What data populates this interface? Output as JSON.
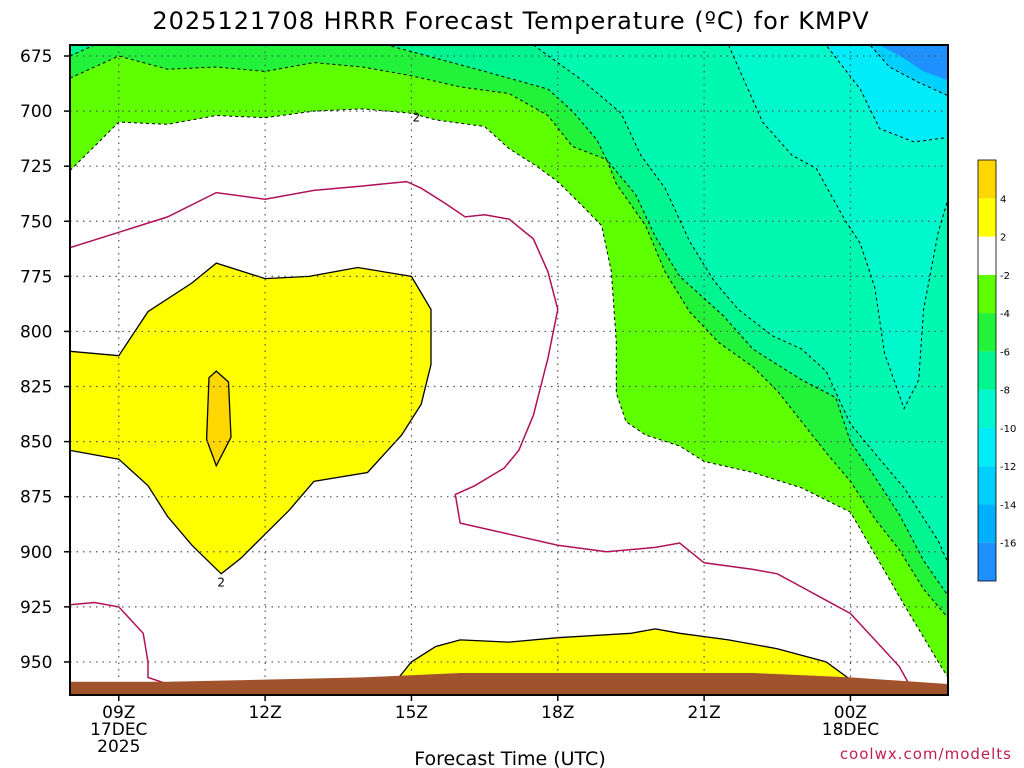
{
  "chart_data": {
    "type": "heatmap",
    "title": "2025121708 HRRR Forecast Temperature (ºC) for KMPV",
    "xlabel": "Forecast Time (UTC)",
    "ylabel": "",
    "y_axis": {
      "unit": "hPa",
      "range": [
        965,
        670
      ],
      "ticks": [
        675,
        700,
        725,
        750,
        775,
        800,
        825,
        850,
        875,
        900,
        925,
        950
      ]
    },
    "x_axis": {
      "unit": "hour_utc",
      "range": [
        8,
        26
      ],
      "ticks": [
        {
          "h": 9,
          "lines": [
            "09Z",
            "17DEC",
            "2025"
          ]
        },
        {
          "h": 12,
          "lines": [
            "12Z"
          ]
        },
        {
          "h": 15,
          "lines": [
            "15Z"
          ]
        },
        {
          "h": 18,
          "lines": [
            "18Z"
          ]
        },
        {
          "h": 21,
          "lines": [
            "21Z"
          ]
        },
        {
          "h": 24,
          "lines": [
            "00Z",
            "18DEC"
          ]
        }
      ]
    },
    "colorbar": {
      "levels": [
        {
          "label": "",
          "color": "#1e90ff"
        },
        {
          "label": "-16",
          "color": "#00b0ff"
        },
        {
          "label": "-14",
          "color": "#00d0ff"
        },
        {
          "label": "-12",
          "color": "#00ecf8"
        },
        {
          "label": "-10",
          "color": "#00f8cc"
        },
        {
          "label": "-8",
          "color": "#00f590"
        },
        {
          "label": "-6",
          "color": "#22f23a"
        },
        {
          "label": "-4",
          "color": "#5eff00"
        },
        {
          "label": "-2",
          "color": "#ffffff"
        },
        {
          "label": "2",
          "color": "#ffff00"
        },
        {
          "label": "4",
          "color": "#ffd700"
        }
      ]
    },
    "regions": [
      {
        "name": "below-minus-10",
        "color": "#00f8cc",
        "points": [
          [
            8,
            670
          ],
          [
            26,
            670
          ],
          [
            26,
            740
          ],
          [
            25.8,
            755
          ],
          [
            25.5,
            790
          ],
          [
            25.4,
            822
          ],
          [
            25.1,
            835
          ],
          [
            24.7,
            810
          ],
          [
            24.5,
            780
          ],
          [
            24.2,
            760
          ],
          [
            23.9,
            750
          ],
          [
            23.3,
            726
          ],
          [
            22.8,
            720
          ],
          [
            22.2,
            705
          ],
          [
            21.8,
            685
          ],
          [
            21.5,
            670
          ]
        ]
      },
      {
        "name": "below-minus-12",
        "color": "#00ecf8",
        "points": [
          [
            22.8,
            670
          ],
          [
            26,
            670
          ],
          [
            26,
            712
          ],
          [
            25.3,
            714
          ],
          [
            24.6,
            708
          ],
          [
            24.2,
            690
          ],
          [
            23.5,
            670
          ]
        ]
      },
      {
        "name": "below-minus-14",
        "color": "#00d0ff",
        "points": [
          [
            23.8,
            670
          ],
          [
            26,
            670
          ],
          [
            26,
            693
          ],
          [
            25.4,
            687
          ],
          [
            24.8,
            680
          ],
          [
            24.4,
            670
          ]
        ]
      },
      {
        "name": "below-minus-16",
        "color": "#1e90ff",
        "points": [
          [
            24.6,
            670
          ],
          [
            26,
            670
          ],
          [
            26,
            686
          ],
          [
            25.5,
            682
          ],
          [
            25.1,
            676
          ]
        ]
      }
    ],
    "warm_layers": [
      {
        "name": "above-2-upper",
        "color": "#ffff00",
        "points": [
          [
            8,
            809
          ],
          [
            9,
            811
          ],
          [
            9.6,
            791
          ],
          [
            10.5,
            778
          ],
          [
            11,
            769
          ],
          [
            12,
            776
          ],
          [
            12.9,
            775
          ],
          [
            13.9,
            771
          ],
          [
            15,
            775
          ],
          [
            15.4,
            790
          ],
          [
            15.4,
            815
          ],
          [
            15.2,
            833
          ],
          [
            14.8,
            847
          ],
          [
            14.1,
            864
          ],
          [
            13,
            868
          ],
          [
            12.5,
            881
          ],
          [
            12,
            892
          ],
          [
            11.5,
            903
          ],
          [
            11.1,
            910
          ],
          [
            10.5,
            897
          ],
          [
            10,
            884
          ],
          [
            9.6,
            870
          ],
          [
            9,
            858
          ],
          [
            8,
            854
          ]
        ]
      },
      {
        "name": "above-4",
        "color": "#ffd700",
        "points": [
          [
            10.85,
            821
          ],
          [
            11,
            818
          ],
          [
            11.25,
            823
          ],
          [
            11.3,
            848
          ],
          [
            11,
            861
          ],
          [
            10.8,
            849
          ]
        ]
      },
      {
        "name": "above-2-lower",
        "color": "#ffff00",
        "points": [
          [
            14.5,
            965
          ],
          [
            14.6,
            961
          ],
          [
            15,
            950
          ],
          [
            15.5,
            943
          ],
          [
            16,
            940
          ],
          [
            17,
            941
          ],
          [
            18,
            939
          ],
          [
            19.5,
            937
          ],
          [
            20,
            935
          ],
          [
            20.5,
            937
          ],
          [
            21.5,
            940
          ],
          [
            22.5,
            944
          ],
          [
            23.5,
            950
          ],
          [
            24,
            958
          ],
          [
            24.05,
            965
          ]
        ]
      }
    ],
    "contours": [
      {
        "name": "contour-minus-2",
        "style": "dashed",
        "color": "#000000",
        "points": [
          [
            8,
            727
          ],
          [
            9,
            705
          ],
          [
            10,
            706
          ],
          [
            11,
            702
          ],
          [
            12,
            703
          ],
          [
            13,
            700
          ],
          [
            14,
            699
          ],
          [
            15,
            701
          ],
          [
            15.5,
            704
          ],
          [
            16.5,
            707
          ],
          [
            17,
            717
          ],
          [
            17.5,
            724
          ],
          [
            18,
            732
          ],
          [
            18.5,
            743
          ],
          [
            18.9,
            752
          ],
          [
            19.1,
            773
          ],
          [
            19.2,
            805
          ],
          [
            19.2,
            828
          ],
          [
            19.4,
            841
          ],
          [
            19.8,
            847
          ],
          [
            20.5,
            852
          ],
          [
            21,
            859
          ],
          [
            22,
            864
          ],
          [
            23,
            871
          ],
          [
            24,
            882
          ],
          [
            24.5,
            901
          ],
          [
            25.1,
            924
          ],
          [
            25.8,
            950
          ],
          [
            26,
            957
          ]
        ]
      },
      {
        "name": "contour-minus-4",
        "style": "dashed",
        "color": "#000000",
        "points": [
          [
            8,
            685
          ],
          [
            9,
            675
          ],
          [
            10,
            681
          ],
          [
            11,
            680
          ],
          [
            12,
            682
          ],
          [
            13,
            678
          ],
          [
            14,
            680
          ],
          [
            15,
            684
          ],
          [
            16,
            689
          ],
          [
            17,
            692
          ],
          [
            17.8,
            702
          ],
          [
            18.3,
            716
          ],
          [
            19,
            722
          ],
          [
            19.2,
            733
          ],
          [
            19.8,
            752
          ],
          [
            20.2,
            773
          ],
          [
            20.7,
            791
          ],
          [
            21.3,
            805
          ],
          [
            22,
            816
          ],
          [
            22.5,
            827
          ],
          [
            23,
            841
          ],
          [
            23.5,
            855
          ],
          [
            24,
            868
          ],
          [
            24.5,
            885
          ],
          [
            25,
            899
          ],
          [
            25.5,
            917
          ],
          [
            26,
            930
          ]
        ]
      },
      {
        "name": "contour-minus-6",
        "style": "dashed",
        "color": "#000000",
        "points": [
          [
            8,
            675
          ],
          [
            8.5,
            670
          ],
          [
            14.5,
            670
          ],
          [
            15.5,
            676
          ],
          [
            16.5,
            682
          ],
          [
            17.8,
            690
          ],
          [
            18.3,
            700
          ],
          [
            18.8,
            713
          ],
          [
            19,
            722
          ],
          [
            19.6,
            738
          ],
          [
            20,
            757
          ],
          [
            20.5,
            775
          ],
          [
            21.4,
            793
          ],
          [
            22,
            808
          ],
          [
            23,
            822
          ],
          [
            23.7,
            830
          ],
          [
            24,
            850
          ],
          [
            24.5,
            866
          ],
          [
            25,
            883
          ],
          [
            25.5,
            904
          ],
          [
            26,
            920
          ]
        ]
      },
      {
        "name": "contour-minus-8",
        "style": "dashed",
        "color": "#000000",
        "points": [
          [
            17.5,
            670
          ],
          [
            18.5,
            686
          ],
          [
            19.3,
            701
          ],
          [
            19.7,
            720
          ],
          [
            20.2,
            735
          ],
          [
            20.7,
            759
          ],
          [
            21.2,
            777
          ],
          [
            21.7,
            790
          ],
          [
            22.4,
            802
          ],
          [
            23,
            808
          ],
          [
            23.5,
            818
          ],
          [
            24,
            842
          ],
          [
            24.6,
            858
          ],
          [
            25.1,
            871
          ],
          [
            25.8,
            895
          ],
          [
            26,
            905
          ]
        ]
      },
      {
        "name": "contour-minus-10",
        "style": "dashed",
        "color": "#000000",
        "points": [
          [
            21.5,
            670
          ],
          [
            21.8,
            685
          ],
          [
            22.2,
            705
          ],
          [
            22.8,
            720
          ],
          [
            23.3,
            726
          ],
          [
            23.9,
            750
          ],
          [
            24.2,
            760
          ],
          [
            24.5,
            780
          ],
          [
            24.7,
            810
          ],
          [
            25.1,
            835
          ],
          [
            25.4,
            822
          ],
          [
            25.5,
            790
          ],
          [
            25.8,
            755
          ],
          [
            26,
            740
          ]
        ]
      },
      {
        "name": "contour-minus-12",
        "style": "dashed",
        "color": "#000000",
        "points": [
          [
            22.8,
            670
          ],
          [
            23.5,
            670
          ],
          [
            24.2,
            690
          ],
          [
            24.6,
            708
          ],
          [
            25.3,
            714
          ],
          [
            26,
            712
          ]
        ]
      },
      {
        "name": "contour-minus-14",
        "style": "dashed",
        "color": "#000000",
        "points": [
          [
            23.8,
            670
          ],
          [
            24.4,
            670
          ],
          [
            24.8,
            680
          ],
          [
            25.4,
            687
          ],
          [
            26,
            693
          ]
        ]
      },
      {
        "name": "contour-0-upper",
        "style": "solid",
        "color": "#b0105a",
        "points": [
          [
            8,
            762
          ],
          [
            9,
            755
          ],
          [
            10,
            748
          ],
          [
            11,
            737
          ],
          [
            12,
            740
          ],
          [
            13,
            736
          ],
          [
            14,
            734
          ],
          [
            14.9,
            732
          ],
          [
            15.2,
            735
          ],
          [
            15.7,
            742
          ],
          [
            16.1,
            748
          ],
          [
            16.5,
            747
          ],
          [
            17,
            749
          ],
          [
            17.5,
            758
          ],
          [
            17.8,
            773
          ],
          [
            18,
            790
          ],
          [
            17.8,
            812
          ],
          [
            17.5,
            838
          ],
          [
            17.2,
            854
          ],
          [
            16.9,
            862
          ],
          [
            16.3,
            870
          ],
          [
            15.9,
            874
          ],
          [
            16,
            887
          ],
          [
            17,
            892
          ],
          [
            18,
            897
          ],
          [
            19,
            900
          ],
          [
            20,
            898
          ],
          [
            20.5,
            896
          ],
          [
            21,
            905
          ],
          [
            22,
            908
          ],
          [
            22.5,
            910
          ],
          [
            23,
            916
          ],
          [
            23.5,
            922
          ],
          [
            24,
            928
          ],
          [
            24.5,
            940
          ],
          [
            25,
            952
          ],
          [
            25.2,
            960
          ]
        ]
      },
      {
        "name": "contour-0-lower",
        "style": "solid",
        "color": "#b0105a",
        "points": [
          [
            8,
            924
          ],
          [
            8.5,
            923
          ],
          [
            9,
            925
          ],
          [
            9.5,
            937
          ],
          [
            9.6,
            950
          ],
          [
            9.6,
            957
          ],
          [
            10,
            960
          ]
        ]
      }
    ],
    "contour_labels": [
      {
        "text": "2",
        "h": 15.1,
        "p": 703
      },
      {
        "text": "2",
        "h": 11.1,
        "p": 914
      }
    ],
    "ground": {
      "color": "#a0522d",
      "points": [
        [
          8,
          959
        ],
        [
          10,
          959
        ],
        [
          12,
          958
        ],
        [
          14,
          957
        ],
        [
          16,
          955
        ],
        [
          18,
          955
        ],
        [
          20,
          955
        ],
        [
          22,
          955
        ],
        [
          24,
          957
        ],
        [
          26,
          960
        ]
      ]
    }
  },
  "credit": "coolwx.com/modelts"
}
